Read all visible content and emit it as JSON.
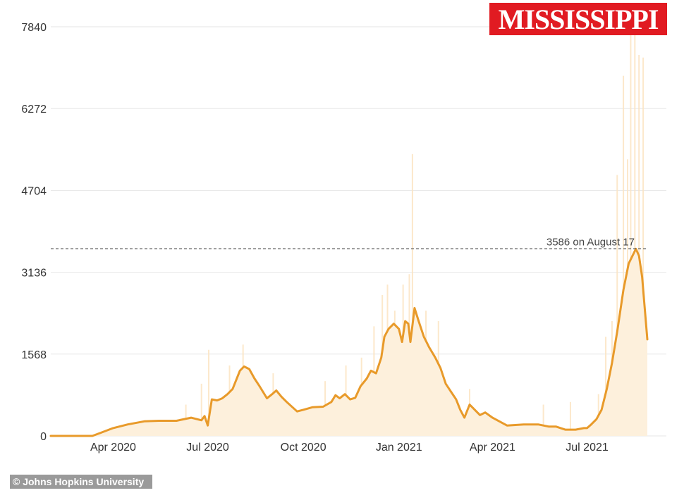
{
  "brand": {
    "logo_text": "MISSISSIPPI",
    "logo_color": "#e11b22"
  },
  "credit": "© Johns Hopkins University",
  "chart_data": {
    "type": "line",
    "title": "",
    "xlabel": "",
    "ylabel": "",
    "y_ticks": [
      0,
      1568,
      3136,
      4704,
      6272,
      7840
    ],
    "y_tick_labels": [
      "0",
      "1568",
      "3136",
      "4704",
      "6272",
      "7840"
    ],
    "ylim": [
      0,
      7840
    ],
    "x_ticks": [
      {
        "date": "2020-04-01",
        "label": "Apr 2020"
      },
      {
        "date": "2020-07-01",
        "label": "Jul 2020"
      },
      {
        "date": "2020-10-01",
        "label": "Oct 2020"
      },
      {
        "date": "2021-01-01",
        "label": "Jan 2021"
      },
      {
        "date": "2021-04-01",
        "label": "Apr 2021"
      },
      {
        "date": "2021-07-01",
        "label": "Jul 2021"
      }
    ],
    "xlim": [
      "2020-02-01",
      "2021-08-28"
    ],
    "grid": true,
    "line_color": "#e89a2a",
    "bar_color": "#fbe4c2",
    "series": [
      {
        "type": "line",
        "points": [
          [
            "2020-02-01",
            0
          ],
          [
            "2020-03-12",
            0
          ],
          [
            "2020-03-20",
            60
          ],
          [
            "2020-04-01",
            150
          ],
          [
            "2020-04-15",
            220
          ],
          [
            "2020-05-01",
            280
          ],
          [
            "2020-05-15",
            290
          ],
          [
            "2020-06-01",
            290
          ],
          [
            "2020-06-15",
            350
          ],
          [
            "2020-06-25",
            300
          ],
          [
            "2020-06-28",
            380
          ],
          [
            "2020-07-01",
            200
          ],
          [
            "2020-07-05",
            700
          ],
          [
            "2020-07-10",
            680
          ],
          [
            "2020-07-15",
            720
          ],
          [
            "2020-07-20",
            800
          ],
          [
            "2020-07-25",
            900
          ],
          [
            "2020-08-01",
            1250
          ],
          [
            "2020-08-05",
            1330
          ],
          [
            "2020-08-10",
            1280
          ],
          [
            "2020-08-15",
            1100
          ],
          [
            "2020-08-20",
            950
          ],
          [
            "2020-08-27",
            720
          ],
          [
            "2020-09-01",
            800
          ],
          [
            "2020-09-05",
            870
          ],
          [
            "2020-09-10",
            750
          ],
          [
            "2020-09-15",
            650
          ],
          [
            "2020-09-25",
            470
          ],
          [
            "2020-10-01",
            500
          ],
          [
            "2020-10-10",
            550
          ],
          [
            "2020-10-20",
            560
          ],
          [
            "2020-10-28",
            650
          ],
          [
            "2020-11-01",
            780
          ],
          [
            "2020-11-05",
            720
          ],
          [
            "2020-11-10",
            800
          ],
          [
            "2020-11-15",
            700
          ],
          [
            "2020-11-20",
            730
          ],
          [
            "2020-11-25",
            950
          ],
          [
            "2020-12-01",
            1100
          ],
          [
            "2020-12-05",
            1250
          ],
          [
            "2020-12-10",
            1200
          ],
          [
            "2020-12-15",
            1500
          ],
          [
            "2020-12-18",
            1900
          ],
          [
            "2020-12-22",
            2050
          ],
          [
            "2020-12-27",
            2150
          ],
          [
            "2021-01-01",
            2050
          ],
          [
            "2021-01-04",
            1800
          ],
          [
            "2021-01-07",
            2200
          ],
          [
            "2021-01-10",
            2150
          ],
          [
            "2021-01-12",
            1800
          ],
          [
            "2021-01-16",
            2450
          ],
          [
            "2021-01-20",
            2200
          ],
          [
            "2021-01-25",
            1900
          ],
          [
            "2021-01-30",
            1700
          ],
          [
            "2021-02-05",
            1500
          ],
          [
            "2021-02-10",
            1300
          ],
          [
            "2021-02-15",
            1000
          ],
          [
            "2021-02-20",
            850
          ],
          [
            "2021-02-25",
            700
          ],
          [
            "2021-03-01",
            500
          ],
          [
            "2021-03-05",
            350
          ],
          [
            "2021-03-10",
            600
          ],
          [
            "2021-03-15",
            500
          ],
          [
            "2021-03-20",
            400
          ],
          [
            "2021-03-25",
            450
          ],
          [
            "2021-04-01",
            350
          ],
          [
            "2021-04-15",
            200
          ],
          [
            "2021-05-01",
            220
          ],
          [
            "2021-05-15",
            220
          ],
          [
            "2021-05-25",
            180
          ],
          [
            "2021-06-01",
            180
          ],
          [
            "2021-06-10",
            120
          ],
          [
            "2021-06-20",
            120
          ],
          [
            "2021-06-28",
            150
          ],
          [
            "2021-07-01",
            150
          ],
          [
            "2021-07-05",
            220
          ],
          [
            "2021-07-10",
            320
          ],
          [
            "2021-07-15",
            500
          ],
          [
            "2021-07-20",
            900
          ],
          [
            "2021-07-25",
            1400
          ],
          [
            "2021-07-30",
            2000
          ],
          [
            "2021-08-05",
            2800
          ],
          [
            "2021-08-10",
            3300
          ],
          [
            "2021-08-17",
            3586
          ],
          [
            "2021-08-20",
            3450
          ],
          [
            "2021-08-23",
            3050
          ],
          [
            "2021-08-28",
            1850
          ]
        ]
      }
    ],
    "daily_bars": [
      [
        "2020-06-10",
        600
      ],
      [
        "2020-06-25",
        1000
      ],
      [
        "2020-07-02",
        1650
      ],
      [
        "2020-07-22",
        1350
      ],
      [
        "2020-08-04",
        1750
      ],
      [
        "2020-09-02",
        1200
      ],
      [
        "2020-10-22",
        1050
      ],
      [
        "2020-11-11",
        1350
      ],
      [
        "2020-11-26",
        1500
      ],
      [
        "2020-12-08",
        2100
      ],
      [
        "2020-12-16",
        2700
      ],
      [
        "2020-12-21",
        2900
      ],
      [
        "2020-12-28",
        2400
      ],
      [
        "2021-01-05",
        2900
      ],
      [
        "2021-01-11",
        3100
      ],
      [
        "2021-01-14",
        5400
      ],
      [
        "2021-01-27",
        2400
      ],
      [
        "2021-02-08",
        2200
      ],
      [
        "2021-03-10",
        900
      ],
      [
        "2021-05-20",
        600
      ],
      [
        "2021-06-15",
        650
      ],
      [
        "2021-07-12",
        800
      ],
      [
        "2021-07-19",
        1900
      ],
      [
        "2021-07-25",
        2200
      ],
      [
        "2021-07-30",
        5000
      ],
      [
        "2021-08-05",
        6900
      ],
      [
        "2021-08-09",
        5300
      ],
      [
        "2021-08-12",
        7700
      ],
      [
        "2021-08-16",
        7840
      ],
      [
        "2021-08-20",
        7300
      ],
      [
        "2021-08-24",
        7250
      ]
    ],
    "annotations": [
      {
        "text": "3586 on August 17",
        "y": 3586,
        "style": "dashed"
      }
    ]
  }
}
